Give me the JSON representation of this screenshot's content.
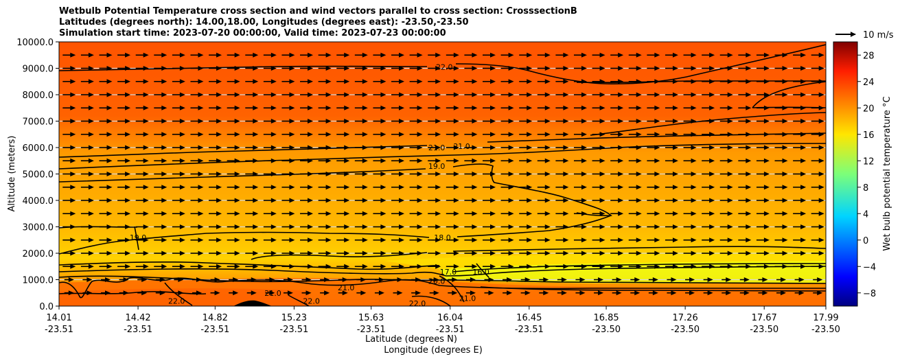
{
  "chart_data": {
    "type": "heatmap",
    "title_lines": [
      "Wetbulb Potential Temperature cross section and wind vectors parallel to cross section: CrosssectionB",
      "Latitudes (degrees north): 14.00,18.00, Longitudes (degrees east): -23.50,-23.50",
      "Simulation start time: 2023-07-20 00:00:00, Valid time: 2023-07-23 00:00:00"
    ],
    "ylabel": "Altitude (meters)",
    "xlabel": "Latitude (degrees N)",
    "xlabel2": "Longitude (degrees E)",
    "ylim": [
      0,
      10000
    ],
    "yticks": [
      "0.0",
      "1000.0",
      "2000.0",
      "3000.0",
      "4000.0",
      "5000.0",
      "6000.0",
      "7000.0",
      "8000.0",
      "9000.0",
      "10000.0"
    ],
    "xlim": [
      14.01,
      17.99
    ],
    "xticks": [
      {
        "lat": "14.01",
        "lon": "-23.51"
      },
      {
        "lat": "14.42",
        "lon": "-23.51"
      },
      {
        "lat": "14.82",
        "lon": "-23.51"
      },
      {
        "lat": "15.23",
        "lon": "-23.51"
      },
      {
        "lat": "15.63",
        "lon": "-23.51"
      },
      {
        "lat": "16.04",
        "lon": "-23.51"
      },
      {
        "lat": "16.45",
        "lon": "-23.51"
      },
      {
        "lat": "16.85",
        "lon": "-23.50"
      },
      {
        "lat": "17.26",
        "lon": "-23.50"
      },
      {
        "lat": "17.67",
        "lon": "-23.50"
      },
      {
        "lat": "17.99",
        "lon": "-23.50"
      }
    ],
    "grid": "horizontal",
    "colorbar": {
      "label": "Wet bulb potential temperature °C",
      "ticks": [
        "-8",
        "-4",
        "0",
        "4",
        "8",
        "12",
        "16",
        "20",
        "24",
        "28"
      ],
      "range": [
        -10,
        30
      ],
      "colormap": "jet"
    },
    "quiver_key": "10 m/s",
    "contour_labels": [
      {
        "text": "22.0",
        "lat": 16.01,
        "alt": 9050
      },
      {
        "text": "21.0",
        "lat": 15.97,
        "alt": 6000
      },
      {
        "text": "21.0",
        "lat": 16.1,
        "alt": 6050
      },
      {
        "text": "19.0",
        "lat": 15.97,
        "alt": 5300
      },
      {
        "text": "19.0",
        "lat": 14.42,
        "alt": 2600
      },
      {
        "text": "18.0",
        "lat": 16.0,
        "alt": 2600
      },
      {
        "text": "17.0",
        "lat": 16.03,
        "alt": 1300
      },
      {
        "text": "16.0",
        "lat": 16.2,
        "alt": 1300
      },
      {
        "text": "20.0",
        "lat": 15.97,
        "alt": 950
      },
      {
        "text": "21.0",
        "lat": 15.5,
        "alt": 700
      },
      {
        "text": "21.0",
        "lat": 15.12,
        "alt": 500
      },
      {
        "text": "22.0",
        "lat": 14.62,
        "alt": 200
      },
      {
        "text": "22.0",
        "lat": 15.32,
        "alt": 200
      },
      {
        "text": "22.0",
        "lat": 15.87,
        "alt": 100
      },
      {
        "text": "21.0",
        "lat": 16.13,
        "alt": 300
      }
    ],
    "colors": {
      "upper_layer": "#ff5a00",
      "mid_layer": "#ffa500",
      "low_layer": "#ffd200",
      "yellow_tongue": "#e6ff14"
    }
  }
}
